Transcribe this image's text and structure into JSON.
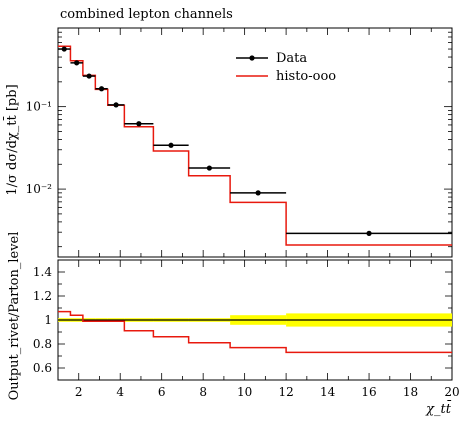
{
  "chart_data": [
    {
      "type": "line",
      "panel": "main",
      "title": "combined lepton channels",
      "xlabel": "",
      "ylabel": "1/σ dσ/dχ_tt̄ [pb]",
      "y_scale": "log",
      "xlim": [
        1,
        20
      ],
      "ylim": [
        0.0015,
        0.9
      ],
      "y_ticks": [
        {
          "value": 0.1,
          "label": "10⁻¹"
        },
        {
          "value": 0.01,
          "label": "10⁻²"
        }
      ],
      "legend": {
        "placement": "top-right",
        "entries": [
          {
            "name": "Data",
            "style": "black-errorbar-dot"
          },
          {
            "name": "histo-ooo",
            "style": "red-line"
          }
        ]
      },
      "series": [
        {
          "name": "Data",
          "color": "#000000",
          "bins": [
            {
              "x_lo": 1.0,
              "x_hi": 1.6,
              "y": 0.5
            },
            {
              "x_lo": 1.6,
              "x_hi": 2.2,
              "y": 0.34
            },
            {
              "x_lo": 2.2,
              "x_hi": 2.8,
              "y": 0.235
            },
            {
              "x_lo": 2.8,
              "x_hi": 3.4,
              "y": 0.165
            },
            {
              "x_lo": 3.4,
              "x_hi": 4.2,
              "y": 0.105
            },
            {
              "x_lo": 4.2,
              "x_hi": 5.6,
              "y": 0.062
            },
            {
              "x_lo": 5.6,
              "x_hi": 7.3,
              "y": 0.034
            },
            {
              "x_lo": 7.3,
              "x_hi": 9.3,
              "y": 0.018
            },
            {
              "x_lo": 9.3,
              "x_hi": 12.0,
              "y": 0.009
            },
            {
              "x_lo": 12.0,
              "x_hi": 20.0,
              "y": 0.0029
            }
          ]
        },
        {
          "name": "histo-ooo",
          "color": "#e8190e",
          "bins": [
            {
              "x_lo": 1.0,
              "x_hi": 1.6,
              "y": 0.54
            },
            {
              "x_lo": 1.6,
              "x_hi": 2.2,
              "y": 0.36
            },
            {
              "x_lo": 2.2,
              "x_hi": 2.8,
              "y": 0.24
            },
            {
              "x_lo": 2.8,
              "x_hi": 3.4,
              "y": 0.162
            },
            {
              "x_lo": 3.4,
              "x_hi": 4.2,
              "y": 0.104
            },
            {
              "x_lo": 4.2,
              "x_hi": 5.6,
              "y": 0.057
            },
            {
              "x_lo": 5.6,
              "x_hi": 7.3,
              "y": 0.029
            },
            {
              "x_lo": 7.3,
              "x_hi": 9.3,
              "y": 0.0145
            },
            {
              "x_lo": 9.3,
              "x_hi": 12.0,
              "y": 0.0069
            },
            {
              "x_lo": 12.0,
              "x_hi": 20.0,
              "y": 0.0021
            }
          ]
        }
      ]
    },
    {
      "type": "line",
      "panel": "ratio",
      "xlabel": "χ_tt̄",
      "ylabel": "Output_rivet/Parton_level",
      "xlim": [
        1,
        20
      ],
      "ylim": [
        0.5,
        1.5
      ],
      "x_ticks": [
        2,
        4,
        6,
        8,
        10,
        12,
        14,
        16,
        18,
        20
      ],
      "y_ticks": [
        {
          "value": 0.6,
          "label": "0.6"
        },
        {
          "value": 0.8,
          "label": "0.8"
        },
        {
          "value": 1.0,
          "label": "1"
        },
        {
          "value": 1.2,
          "label": "1.2"
        },
        {
          "value": 1.4,
          "label": "1.4"
        }
      ],
      "band": {
        "color": "#ffff00",
        "bins": [
          {
            "x_lo": 1.0,
            "x_hi": 1.6,
            "lo": 0.985,
            "hi": 1.015
          },
          {
            "x_lo": 1.6,
            "x_hi": 2.2,
            "lo": 0.985,
            "hi": 1.015
          },
          {
            "x_lo": 2.2,
            "x_hi": 2.8,
            "lo": 0.985,
            "hi": 1.015
          },
          {
            "x_lo": 2.8,
            "x_hi": 3.4,
            "lo": 0.985,
            "hi": 1.015
          },
          {
            "x_lo": 3.4,
            "x_hi": 4.2,
            "lo": 0.985,
            "hi": 1.015
          },
          {
            "x_lo": 4.2,
            "x_hi": 5.6,
            "lo": 0.985,
            "hi": 1.015
          },
          {
            "x_lo": 5.6,
            "x_hi": 7.3,
            "lo": 0.985,
            "hi": 1.015
          },
          {
            "x_lo": 7.3,
            "x_hi": 9.3,
            "lo": 0.985,
            "hi": 1.015
          },
          {
            "x_lo": 9.3,
            "x_hi": 12.0,
            "lo": 0.96,
            "hi": 1.04
          },
          {
            "x_lo": 12.0,
            "x_hi": 20.0,
            "lo": 0.945,
            "hi": 1.055
          }
        ]
      },
      "series": [
        {
          "name": "Data",
          "color": "#000000",
          "bins": [
            {
              "x_lo": 1.0,
              "x_hi": 20.0,
              "y": 1.0
            }
          ]
        },
        {
          "name": "histo-ooo",
          "color": "#e8190e",
          "bins": [
            {
              "x_lo": 1.0,
              "x_hi": 1.6,
              "y": 1.07
            },
            {
              "x_lo": 1.6,
              "x_hi": 2.2,
              "y": 1.04
            },
            {
              "x_lo": 2.2,
              "x_hi": 2.8,
              "y": 0.99
            },
            {
              "x_lo": 2.8,
              "x_hi": 3.4,
              "y": 0.99
            },
            {
              "x_lo": 3.4,
              "x_hi": 4.2,
              "y": 0.99
            },
            {
              "x_lo": 4.2,
              "x_hi": 5.6,
              "y": 0.91
            },
            {
              "x_lo": 5.6,
              "x_hi": 7.3,
              "y": 0.86
            },
            {
              "x_lo": 7.3,
              "x_hi": 9.3,
              "y": 0.81
            },
            {
              "x_lo": 9.3,
              "x_hi": 12.0,
              "y": 0.77
            },
            {
              "x_lo": 12.0,
              "x_hi": 20.0,
              "y": 0.73
            }
          ]
        }
      ]
    }
  ]
}
